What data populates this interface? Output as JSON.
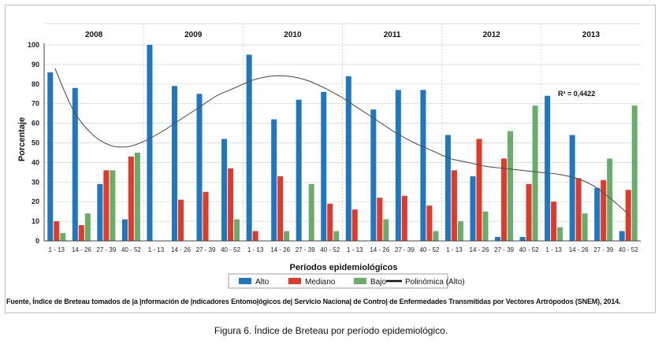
{
  "chart_data": {
    "type": "bar",
    "years": [
      "2008",
      "2009",
      "2010",
      "2011",
      "2012",
      "2013"
    ],
    "periods": [
      "1 - 13",
      "14 - 26",
      "27 - 39",
      "40 - 52"
    ],
    "ylabel": "Porcentaje",
    "xlabel": "Períodos epidemiológicos",
    "ylim": [
      0,
      100
    ],
    "yticks": [
      0,
      10,
      20,
      30,
      40,
      50,
      60,
      70,
      80,
      90,
      100
    ],
    "series": [
      {
        "name": "Alto",
        "color": "#1f77c0",
        "values": [
          86,
          78,
          29,
          11,
          100,
          79,
          75,
          52,
          95,
          62,
          72,
          76,
          84,
          67,
          77,
          77,
          54,
          33,
          2,
          2,
          74,
          54,
          27,
          5
        ]
      },
      {
        "name": "Mediano",
        "color": "#e03a2b",
        "values": [
          10,
          8,
          36,
          43,
          0,
          21,
          25,
          37,
          5,
          33,
          0,
          19,
          16,
          22,
          23,
          18,
          36,
          52,
          42,
          29,
          20,
          32,
          31,
          26
        ]
      },
      {
        "name": "Bajo",
        "color": "#6aad6b",
        "values": [
          4,
          14,
          36,
          45,
          0,
          0,
          0,
          11,
          0,
          5,
          29,
          5,
          0,
          11,
          0,
          5,
          10,
          15,
          56,
          69,
          7,
          14,
          42,
          69
        ]
      }
    ],
    "trend": {
      "name": "Polinómica (Alto)",
      "color": "#555555",
      "values": [
        88,
        67,
        55,
        49,
        48,
        51,
        56,
        62,
        68,
        74,
        78,
        82,
        84,
        84,
        82,
        78,
        73,
        67,
        61,
        55,
        50,
        46,
        42,
        40,
        38,
        37,
        36,
        35,
        34,
        32,
        28,
        21,
        13
      ]
    },
    "annotation": "R² = 0,4422",
    "legend_position": "bottom"
  },
  "source_note": "Fuente, Índice de Breteau tomados de |a |nformación de |ndicadores Entomo|ógicos de| Servicio Naciona| de Contro| de Enfermedades Transmitidas por Vectores Artrópodos (SNEM), 2014.",
  "caption": "Figura 6. Índice de Breteau por período epidemiológico."
}
